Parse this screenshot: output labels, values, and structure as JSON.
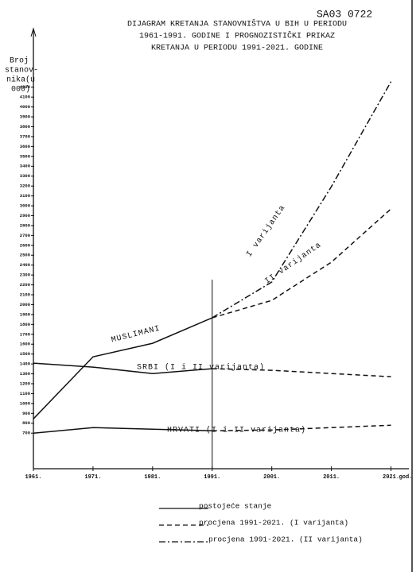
{
  "stamp": "SA03 0722",
  "chart_data": {
    "type": "line",
    "title": [
      "DIJAGRAM KRETANJA STANOVNIŠTVA U BIH U PERIODU",
      "1961-1991. GODINE I PROGNOZISTIČKI PRIKAZ",
      "KRETANJA U PERIODU 1991-2021. GODINE"
    ],
    "y_label": [
      "Broj",
      "stanov-",
      "nika(u",
      "000)"
    ],
    "x_unit": "god.",
    "x": [
      1961,
      1971,
      1981,
      1991,
      2001,
      2011,
      2021
    ],
    "xlim": [
      1961,
      2024
    ],
    "xticks": [
      {
        "value": 1961,
        "label": "1961."
      },
      {
        "value": 1971,
        "label": "1971."
      },
      {
        "value": 1981,
        "label": "1981."
      },
      {
        "value": 1991,
        "label": "1991."
      },
      {
        "value": 2001,
        "label": "2001."
      },
      {
        "value": 2011,
        "label": "2011."
      },
      {
        "value": 2021,
        "label": "2021."
      }
    ],
    "ylim": [
      340,
      4600
    ],
    "yticks": [
      700,
      800,
      900,
      1000,
      1100,
      1200,
      1300,
      1400,
      1500,
      1600,
      1700,
      1800,
      1900,
      2000,
      2100,
      2200,
      2300,
      2400,
      2500,
      2600,
      2700,
      2800,
      2900,
      3000,
      3100,
      3200,
      3300,
      3400,
      3500,
      3600,
      3700,
      3800,
      3900,
      4000,
      4100,
      4200
    ],
    "grid": false,
    "color": "#111111",
    "divider_x": 1991,
    "series": [
      {
        "style": "solid",
        "values": [
          845,
          1472,
          1609,
          1867,
          null,
          null,
          null
        ]
      },
      {
        "style": "solid",
        "values": [
          1408,
          1368,
          1303,
          1352,
          null,
          null,
          null
        ]
      },
      {
        "style": "solid",
        "values": [
          700,
          756,
          740,
          724,
          null,
          null,
          null
        ]
      },
      {
        "style": "dashed",
        "values": [
          null,
          null,
          null,
          1867,
          2043,
          2430,
          2969
        ]
      },
      {
        "style": "dashdot",
        "values": [
          null,
          null,
          null,
          1867,
          2229,
          3194,
          4256
        ]
      },
      {
        "style": "dashed",
        "values": [
          null,
          null,
          null,
          1352,
          1336,
          1303,
          1271
        ]
      },
      {
        "style": "dashed",
        "values": [
          null,
          null,
          null,
          724,
          732,
          756,
          780
        ]
      }
    ],
    "annotations": [
      "MUSLIMANI",
      "SRBI (I i II varijanta)",
      "HRVATI (I i II varijanta)",
      "I varijanta",
      "II varijanta"
    ],
    "legend": [
      {
        "style": "solid",
        "label": "postojeće stanje"
      },
      {
        "style": "dashed",
        "label": "procjena 1991-2021. (I varijanta)"
      },
      {
        "style": "dashdot",
        "label": "procjena 1991-2021. (II varijanta)"
      }
    ]
  }
}
